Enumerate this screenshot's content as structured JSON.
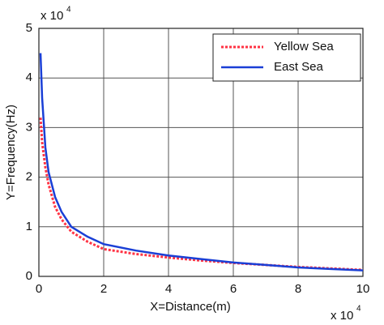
{
  "chart_data": {
    "type": "line",
    "xlabel": "X=Distance(m)",
    "ylabel": "Y=Frequency(Hz)",
    "x_multiplier": {
      "base": "x 10",
      "exponent": "4"
    },
    "y_multiplier": {
      "base": "x 10",
      "exponent": "4"
    },
    "x": [
      0.05,
      0.1,
      0.2,
      0.3,
      0.5,
      0.7,
      1,
      1.5,
      2,
      3,
      4,
      5,
      6,
      7,
      8,
      9,
      10
    ],
    "series": [
      {
        "name": "Yellow Sea",
        "color": "#ff3344",
        "dash": true,
        "values": [
          3.2,
          2.7,
          2.2,
          1.85,
          1.4,
          1.15,
          0.9,
          0.7,
          0.55,
          0.45,
          0.38,
          0.32,
          0.27,
          0.23,
          0.19,
          0.16,
          0.13
        ]
      },
      {
        "name": "East Sea",
        "color": "#1a3fd6",
        "dash": false,
        "values": [
          4.5,
          3.6,
          2.6,
          2.1,
          1.6,
          1.3,
          1.0,
          0.8,
          0.65,
          0.52,
          0.42,
          0.35,
          0.28,
          0.23,
          0.18,
          0.15,
          0.12
        ]
      }
    ],
    "xlim": [
      0,
      10
    ],
    "xticks": [
      0,
      2,
      4,
      6,
      8,
      10
    ],
    "ylim": [
      0,
      5
    ],
    "yticks": [
      0,
      1,
      2,
      3,
      4,
      5
    ],
    "grid": true,
    "legend": "top-right"
  }
}
